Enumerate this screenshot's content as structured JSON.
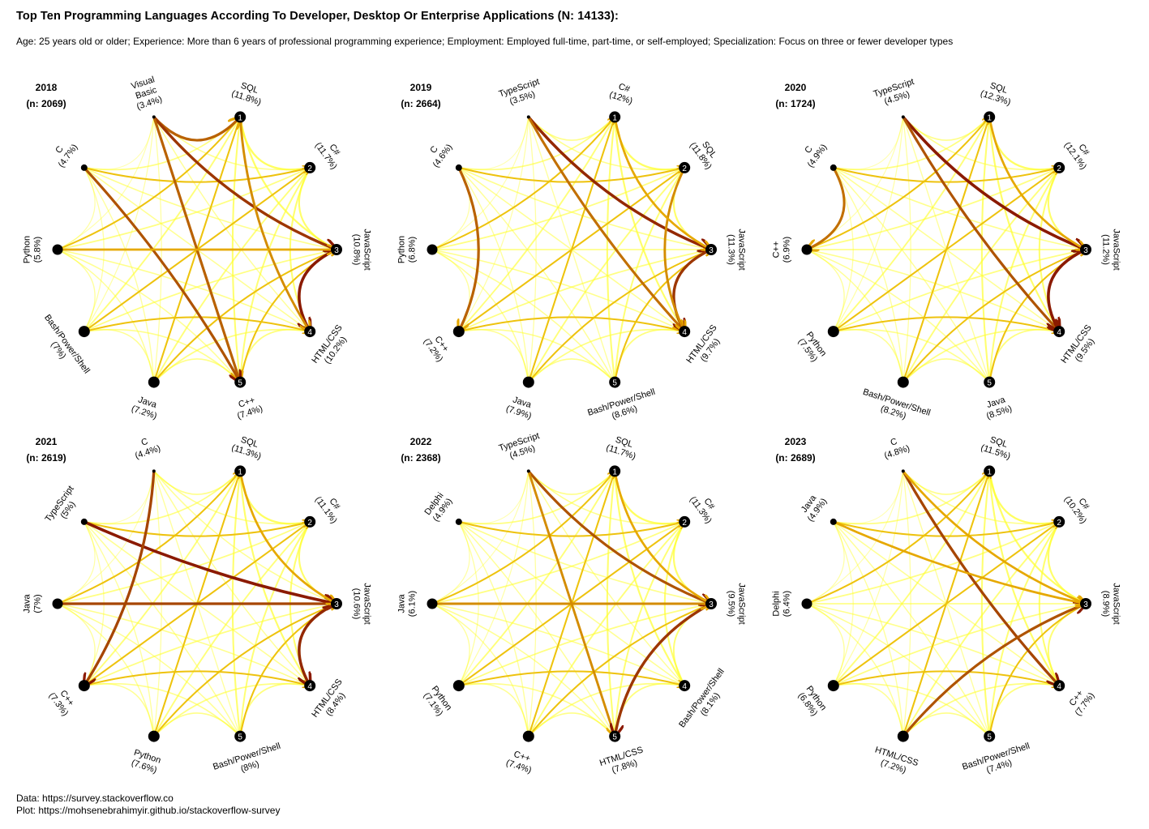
{
  "page": {
    "title": "Top Ten Programming Languages According To  Developer, Desktop Or Enterprise Applications (N: 14133):",
    "subtitle": "Age: 25 years old or older; Experience: More than 6 years of professional programming experience; Employment: Employed full-time, part-time, or self-employed; Specialization: Focus on three or fewer developer types",
    "footer_data": "Data: https://survey.stackoverflow.co",
    "footer_plot": "Plot: https://mohsenebrahimyir.github.io/stackoverflow-survey"
  },
  "colors": {
    "low": "#ffff33",
    "mid": "#e6a800",
    "high": "#8b1a00",
    "node": "#000000"
  },
  "chart_data": [
    {
      "type": "chord",
      "year": "2018",
      "n_label": "(n: 2069)",
      "nodes": [
        {
          "name": "SQL",
          "pct": "(11.8%)",
          "rank": "1"
        },
        {
          "name": "C#",
          "pct": "(11.7%)",
          "rank": "2"
        },
        {
          "name": "JavaScript",
          "pct": "(10.8%)",
          "rank": "3"
        },
        {
          "name": "HTML/CSS",
          "pct": "(10.2%)",
          "rank": "4"
        },
        {
          "name": "C++",
          "pct": "(7.4%)",
          "rank": "5"
        },
        {
          "name": "Java",
          "pct": "(7.2%)",
          "rank": ""
        },
        {
          "name": "Bash/Power/Shell",
          "pct": "(7%)",
          "rank": ""
        },
        {
          "name": "Python",
          "pct": "(5.8%)",
          "rank": ""
        },
        {
          "name": "C",
          "pct": "(4.7%)",
          "rank": ""
        },
        {
          "name": "Visual\nBasic",
          "pct": "(3.4%)",
          "rank": ""
        }
      ],
      "strong_links": [
        [
          9,
          0,
          0.75
        ],
        [
          9,
          2,
          0.9
        ],
        [
          9,
          4,
          0.75
        ],
        [
          2,
          3,
          1.0
        ],
        [
          0,
          3,
          0.6
        ],
        [
          8,
          4,
          0.8
        ],
        [
          7,
          2,
          0.5
        ]
      ]
    },
    {
      "type": "chord",
      "year": "2019",
      "n_label": "(n: 2664)",
      "nodes": [
        {
          "name": "C#",
          "pct": "(12%)",
          "rank": "1"
        },
        {
          "name": "SQL",
          "pct": "(11.8%)",
          "rank": "2"
        },
        {
          "name": "JavaScript",
          "pct": "(11.3%)",
          "rank": "3"
        },
        {
          "name": "HTML/CSS",
          "pct": "(9.7%)",
          "rank": "4"
        },
        {
          "name": "Bash/Power/Shell",
          "pct": "(8.6%)",
          "rank": "5"
        },
        {
          "name": "Java",
          "pct": "(7.9%)",
          "rank": ""
        },
        {
          "name": "C++",
          "pct": "(7.2%)",
          "rank": ""
        },
        {
          "name": "Python",
          "pct": "(6.8%)",
          "rank": ""
        },
        {
          "name": "C",
          "pct": "(4.6%)",
          "rank": ""
        },
        {
          "name": "TypeScript",
          "pct": "(3.5%)",
          "rank": ""
        }
      ],
      "strong_links": [
        [
          9,
          2,
          0.95
        ],
        [
          9,
          3,
          0.7
        ],
        [
          8,
          6,
          0.75
        ],
        [
          2,
          3,
          0.9
        ],
        [
          1,
          3,
          0.6
        ],
        [
          0,
          2,
          0.5
        ]
      ]
    },
    {
      "type": "chord",
      "year": "2020",
      "n_label": "(n: 1724)",
      "nodes": [
        {
          "name": "SQL",
          "pct": "(12.3%)",
          "rank": "1"
        },
        {
          "name": "C#",
          "pct": "(12.1%)",
          "rank": "2"
        },
        {
          "name": "JavaScript",
          "pct": "(11.2%)",
          "rank": "3"
        },
        {
          "name": "HTML/CSS",
          "pct": "(9.5%)",
          "rank": "4"
        },
        {
          "name": "Java",
          "pct": "(8.5%)",
          "rank": "5"
        },
        {
          "name": "Bash/Power/Shell",
          "pct": "(8.2%)",
          "rank": ""
        },
        {
          "name": "Python",
          "pct": "(7.5%)",
          "rank": ""
        },
        {
          "name": "C++",
          "pct": "(6.9%)",
          "rank": ""
        },
        {
          "name": "C",
          "pct": "(4.9%)",
          "rank": ""
        },
        {
          "name": "TypeScript",
          "pct": "(4.5%)",
          "rank": ""
        }
      ],
      "strong_links": [
        [
          9,
          2,
          1.0
        ],
        [
          9,
          3,
          0.8
        ],
        [
          8,
          7,
          0.7
        ],
        [
          2,
          3,
          1.0
        ],
        [
          0,
          2,
          0.5
        ]
      ]
    },
    {
      "type": "chord",
      "year": "2021",
      "n_label": "(n: 2619)",
      "nodes": [
        {
          "name": "SQL",
          "pct": "(11.3%)",
          "rank": "1"
        },
        {
          "name": "C#",
          "pct": "(11.1%)",
          "rank": "2"
        },
        {
          "name": "JavaScript",
          "pct": "(10.6%)",
          "rank": "3"
        },
        {
          "name": "HTML/CSS",
          "pct": "(8.4%)",
          "rank": "4"
        },
        {
          "name": "Bash/Power/Shell",
          "pct": "(8%)",
          "rank": "5"
        },
        {
          "name": "Python",
          "pct": "(7.6%)",
          "rank": ""
        },
        {
          "name": "C++",
          "pct": "(7.3%)",
          "rank": ""
        },
        {
          "name": "Java",
          "pct": "(7%)",
          "rank": ""
        },
        {
          "name": "TypeScript",
          "pct": "(5%)",
          "rank": ""
        },
        {
          "name": "C",
          "pct": "(4.4%)",
          "rank": ""
        }
      ],
      "strong_links": [
        [
          8,
          2,
          1.0
        ],
        [
          7,
          2,
          0.85
        ],
        [
          9,
          6,
          0.85
        ],
        [
          2,
          3,
          0.95
        ],
        [
          0,
          2,
          0.5
        ]
      ]
    },
    {
      "type": "chord",
      "year": "2022",
      "n_label": "(n: 2368)",
      "nodes": [
        {
          "name": "SQL",
          "pct": "(11.7%)",
          "rank": "1"
        },
        {
          "name": "C#",
          "pct": "(11.3%)",
          "rank": "2"
        },
        {
          "name": "JavaScript",
          "pct": "(9.5%)",
          "rank": "3"
        },
        {
          "name": "Bash/Power/Shell",
          "pct": "(8.1%)",
          "rank": "4"
        },
        {
          "name": "HTML/CSS",
          "pct": "(7.8%)",
          "rank": "5"
        },
        {
          "name": "C++",
          "pct": "(7.4%)",
          "rank": ""
        },
        {
          "name": "Python",
          "pct": "(7.1%)",
          "rank": ""
        },
        {
          "name": "Java",
          "pct": "(6.1%)",
          "rank": ""
        },
        {
          "name": "Delphi",
          "pct": "(4.9%)",
          "rank": ""
        },
        {
          "name": "TypeScript",
          "pct": "(4.5%)",
          "rank": ""
        }
      ],
      "strong_links": [
        [
          9,
          2,
          0.8
        ],
        [
          9,
          4,
          0.6
        ],
        [
          2,
          4,
          0.9
        ],
        [
          0,
          2,
          0.5
        ],
        [
          7,
          2,
          0.6
        ]
      ]
    },
    {
      "type": "chord",
      "year": "2023",
      "n_label": "(n: 2689)",
      "nodes": [
        {
          "name": "SQL",
          "pct": "(11.5%)",
          "rank": "1"
        },
        {
          "name": "C#",
          "pct": "(10.2%)",
          "rank": "2"
        },
        {
          "name": "JavaScript",
          "pct": "(8.9%)",
          "rank": "3"
        },
        {
          "name": "C++",
          "pct": "(7.7%)",
          "rank": "4"
        },
        {
          "name": "Bash/Power/Shell",
          "pct": "(7.4%)",
          "rank": "5"
        },
        {
          "name": "HTML/CSS",
          "pct": "(7.2%)",
          "rank": ""
        },
        {
          "name": "Python",
          "pct": "(6.8%)",
          "rank": ""
        },
        {
          "name": "Delphi",
          "pct": "(6.4%)",
          "rank": ""
        },
        {
          "name": "Java",
          "pct": "(4.9%)",
          "rank": ""
        },
        {
          "name": "C",
          "pct": "(4.8%)",
          "rank": ""
        }
      ],
      "strong_links": [
        [
          9,
          3,
          0.85
        ],
        [
          5,
          2,
          0.8
        ],
        [
          9,
          2,
          0.5
        ],
        [
          8,
          2,
          0.5
        ]
      ]
    }
  ]
}
